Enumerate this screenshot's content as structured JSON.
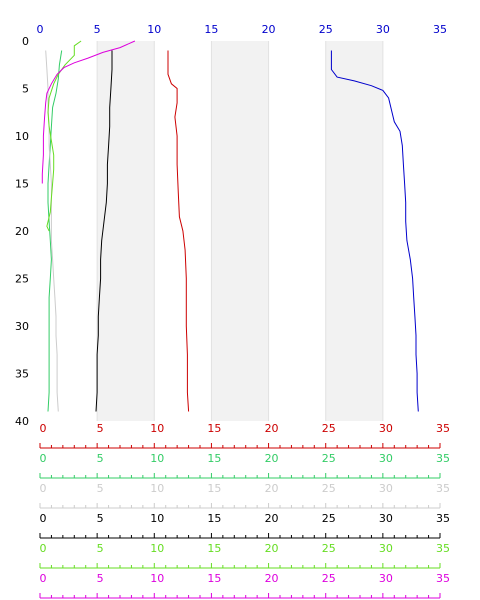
{
  "chart_data": {
    "type": "line",
    "orientation": "depth-profile",
    "x_range": [
      0,
      35
    ],
    "y_range": [
      0,
      40
    ],
    "y_inverted": true,
    "y_ticks": [
      "0",
      "5",
      "10",
      "15",
      "20",
      "25",
      "30",
      "35",
      "40"
    ],
    "shaded_x_bands": [
      [
        5,
        10
      ],
      [
        15,
        20
      ],
      [
        25,
        30
      ]
    ],
    "x_axes": [
      {
        "position": "top",
        "color": "#0000cc",
        "ticks": [
          "0",
          "5",
          "10",
          "15",
          "20",
          "25",
          "30",
          "35"
        ]
      },
      {
        "position": "bottom",
        "color": "#cc0000",
        "ticks": [
          "0",
          "5",
          "10",
          "15",
          "20",
          "25",
          "30",
          "35"
        ]
      },
      {
        "position": "bottom",
        "color": "#33cc66",
        "ticks": [
          "0",
          "5",
          "10",
          "15",
          "20",
          "25",
          "30",
          "35"
        ]
      },
      {
        "position": "bottom",
        "color": "#cccccc",
        "ticks": [
          "0",
          "5",
          "10",
          "15",
          "20",
          "25",
          "30",
          "35"
        ]
      },
      {
        "position": "bottom",
        "color": "#000000",
        "ticks": [
          "0",
          "5",
          "10",
          "15",
          "20",
          "25",
          "30",
          "35"
        ]
      },
      {
        "position": "bottom",
        "color": "#66dd22",
        "ticks": [
          "0",
          "5",
          "10",
          "15",
          "20",
          "25",
          "30",
          "35"
        ]
      },
      {
        "position": "bottom",
        "color": "#dd00dd",
        "ticks": [
          "0",
          "5",
          "10",
          "15",
          "20",
          "25",
          "30",
          "35"
        ]
      }
    ],
    "series": [
      {
        "color": "#0000cc",
        "points": [
          [
            25.5,
            1
          ],
          [
            25.5,
            3
          ],
          [
            26,
            3.8
          ],
          [
            27.5,
            4.2
          ],
          [
            29,
            4.7
          ],
          [
            30,
            5.2
          ],
          [
            30.5,
            6
          ],
          [
            30.8,
            7.5
          ],
          [
            31,
            8.5
          ],
          [
            31.5,
            9.5
          ],
          [
            31.7,
            11
          ],
          [
            31.8,
            13
          ],
          [
            31.9,
            15
          ],
          [
            32,
            17
          ],
          [
            32,
            19
          ],
          [
            32.1,
            21
          ],
          [
            32.4,
            23
          ],
          [
            32.6,
            25
          ],
          [
            32.7,
            27
          ],
          [
            32.8,
            29
          ],
          [
            32.9,
            31
          ],
          [
            32.9,
            33
          ],
          [
            33,
            35
          ],
          [
            33,
            37
          ],
          [
            33.1,
            39
          ]
        ]
      },
      {
        "color": "#cc0000",
        "points": [
          [
            11.2,
            1
          ],
          [
            11.2,
            3.5
          ],
          [
            11.5,
            4.5
          ],
          [
            12,
            5
          ],
          [
            12,
            6.5
          ],
          [
            11.8,
            8
          ],
          [
            12,
            10
          ],
          [
            12,
            13
          ],
          [
            12.1,
            16
          ],
          [
            12.2,
            18.5
          ],
          [
            12.5,
            20
          ],
          [
            12.7,
            22
          ],
          [
            12.8,
            25
          ],
          [
            12.8,
            30
          ],
          [
            12.9,
            33
          ],
          [
            12.9,
            37
          ],
          [
            13,
            39
          ]
        ]
      },
      {
        "color": "#000000",
        "points": [
          [
            6.3,
            1
          ],
          [
            6.3,
            3
          ],
          [
            6.2,
            5
          ],
          [
            6.1,
            7
          ],
          [
            6.1,
            9
          ],
          [
            6,
            11
          ],
          [
            5.9,
            13
          ],
          [
            5.9,
            15
          ],
          [
            5.8,
            17
          ],
          [
            5.6,
            19
          ],
          [
            5.4,
            21
          ],
          [
            5.3,
            23
          ],
          [
            5.3,
            25
          ],
          [
            5.2,
            27
          ],
          [
            5.1,
            29
          ],
          [
            5.1,
            31
          ],
          [
            5,
            33
          ],
          [
            5,
            35
          ],
          [
            5,
            37
          ],
          [
            4.9,
            39
          ]
        ]
      },
      {
        "color": "#33cc66",
        "points": [
          [
            1.9,
            1
          ],
          [
            1.7,
            2.5
          ],
          [
            1.6,
            4
          ],
          [
            1.4,
            5.5
          ],
          [
            1.1,
            7
          ],
          [
            1,
            9
          ],
          [
            0.9,
            11
          ],
          [
            0.8,
            13
          ],
          [
            0.7,
            15
          ],
          [
            0.7,
            17
          ],
          [
            0.8,
            19
          ],
          [
            0.9,
            21
          ],
          [
            1,
            23
          ],
          [
            0.9,
            25
          ],
          [
            0.8,
            27
          ],
          [
            0.8,
            29
          ],
          [
            0.8,
            31
          ],
          [
            0.8,
            33
          ],
          [
            0.8,
            35
          ],
          [
            0.8,
            37
          ],
          [
            0.7,
            39
          ]
        ]
      },
      {
        "color": "#cccccc",
        "points": [
          [
            0.5,
            1
          ],
          [
            0.6,
            3
          ],
          [
            0.7,
            5
          ],
          [
            0.7,
            7
          ],
          [
            0.8,
            9
          ],
          [
            0.8,
            11
          ],
          [
            0.9,
            13
          ],
          [
            1,
            15
          ],
          [
            1,
            17
          ],
          [
            1,
            19
          ],
          [
            1,
            21
          ],
          [
            1.1,
            23
          ],
          [
            1.2,
            25
          ],
          [
            1.3,
            27
          ],
          [
            1.4,
            29
          ],
          [
            1.4,
            31
          ],
          [
            1.5,
            33
          ],
          [
            1.5,
            35
          ],
          [
            1.5,
            37
          ],
          [
            1.6,
            39
          ]
        ]
      },
      {
        "color": "#66dd22",
        "points": [
          [
            3.6,
            0
          ],
          [
            3,
            0.5
          ],
          [
            3,
            1.5
          ],
          [
            2.2,
            2.5
          ],
          [
            1.6,
            3.5
          ],
          [
            1.2,
            4.5
          ],
          [
            0.8,
            6
          ],
          [
            0.7,
            7.5
          ],
          [
            0.8,
            9
          ],
          [
            1,
            10.5
          ],
          [
            1.2,
            12
          ],
          [
            1.2,
            13.5
          ],
          [
            1.1,
            15
          ],
          [
            1,
            16.5
          ],
          [
            0.9,
            18
          ],
          [
            0.6,
            19.5
          ],
          [
            0.8,
            20
          ]
        ]
      },
      {
        "color": "#dd00dd",
        "points": [
          [
            8.3,
            0
          ],
          [
            7,
            0.7
          ],
          [
            5.5,
            1.2
          ],
          [
            4.2,
            1.8
          ],
          [
            3,
            2.3
          ],
          [
            2.1,
            2.8
          ],
          [
            1.5,
            3.5
          ],
          [
            1,
            4.5
          ],
          [
            0.6,
            5.5
          ],
          [
            0.5,
            6.5
          ],
          [
            0.4,
            8
          ],
          [
            0.3,
            10
          ],
          [
            0.3,
            12
          ],
          [
            0.2,
            14
          ],
          [
            0.2,
            15
          ]
        ]
      }
    ]
  }
}
